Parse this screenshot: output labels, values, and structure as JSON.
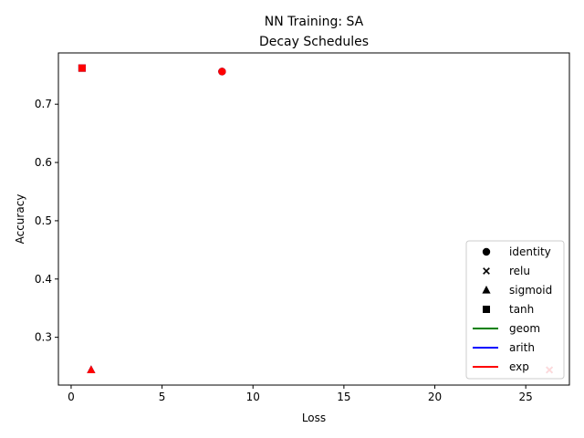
{
  "chart_data": {
    "type": "scatter",
    "title_line1": "NN Training: SA",
    "title_line2": "Decay Schedules",
    "xlabel": "Loss",
    "ylabel": "Accuracy",
    "xlim": [
      -0.7,
      27.4
    ],
    "ylim": [
      0.218,
      0.788
    ],
    "xticks": [
      0,
      5,
      10,
      15,
      20,
      25
    ],
    "yticks": [
      0.3,
      0.4,
      0.5,
      0.6,
      0.7
    ],
    "grid": false,
    "legend_position": "lower right",
    "colors": {
      "geom": "#008000",
      "arith": "#0000ff",
      "exp": "#ff0000"
    },
    "marker_legend": [
      {
        "label": "identity",
        "marker": "circle"
      },
      {
        "label": "relu",
        "marker": "x"
      },
      {
        "label": "sigmoid",
        "marker": "triangle"
      },
      {
        "label": "tanh",
        "marker": "square"
      }
    ],
    "schedule_legend": [
      {
        "label": "geom",
        "color": "#008000"
      },
      {
        "label": "arith",
        "color": "#0000ff"
      },
      {
        "label": "exp",
        "color": "#ff0000"
      }
    ],
    "points": [
      {
        "activation": "identity",
        "schedule": "geom",
        "x": 8.3,
        "y": 0.756
      },
      {
        "activation": "identity",
        "schedule": "arith",
        "x": 8.3,
        "y": 0.756
      },
      {
        "activation": "identity",
        "schedule": "exp",
        "x": 8.3,
        "y": 0.756
      },
      {
        "activation": "relu",
        "schedule": "geom",
        "x": 26.3,
        "y": 0.244
      },
      {
        "activation": "relu",
        "schedule": "arith",
        "x": 26.3,
        "y": 0.244
      },
      {
        "activation": "relu",
        "schedule": "exp",
        "x": 26.3,
        "y": 0.244
      },
      {
        "activation": "sigmoid",
        "schedule": "geom",
        "x": 1.1,
        "y": 0.244
      },
      {
        "activation": "sigmoid",
        "schedule": "arith",
        "x": 1.1,
        "y": 0.244
      },
      {
        "activation": "sigmoid",
        "schedule": "exp",
        "x": 1.1,
        "y": 0.244
      },
      {
        "activation": "tanh",
        "schedule": "geom",
        "x": 0.6,
        "y": 0.762
      },
      {
        "activation": "tanh",
        "schedule": "arith",
        "x": 0.6,
        "y": 0.762
      },
      {
        "activation": "tanh",
        "schedule": "exp",
        "x": 0.6,
        "y": 0.762
      }
    ]
  }
}
